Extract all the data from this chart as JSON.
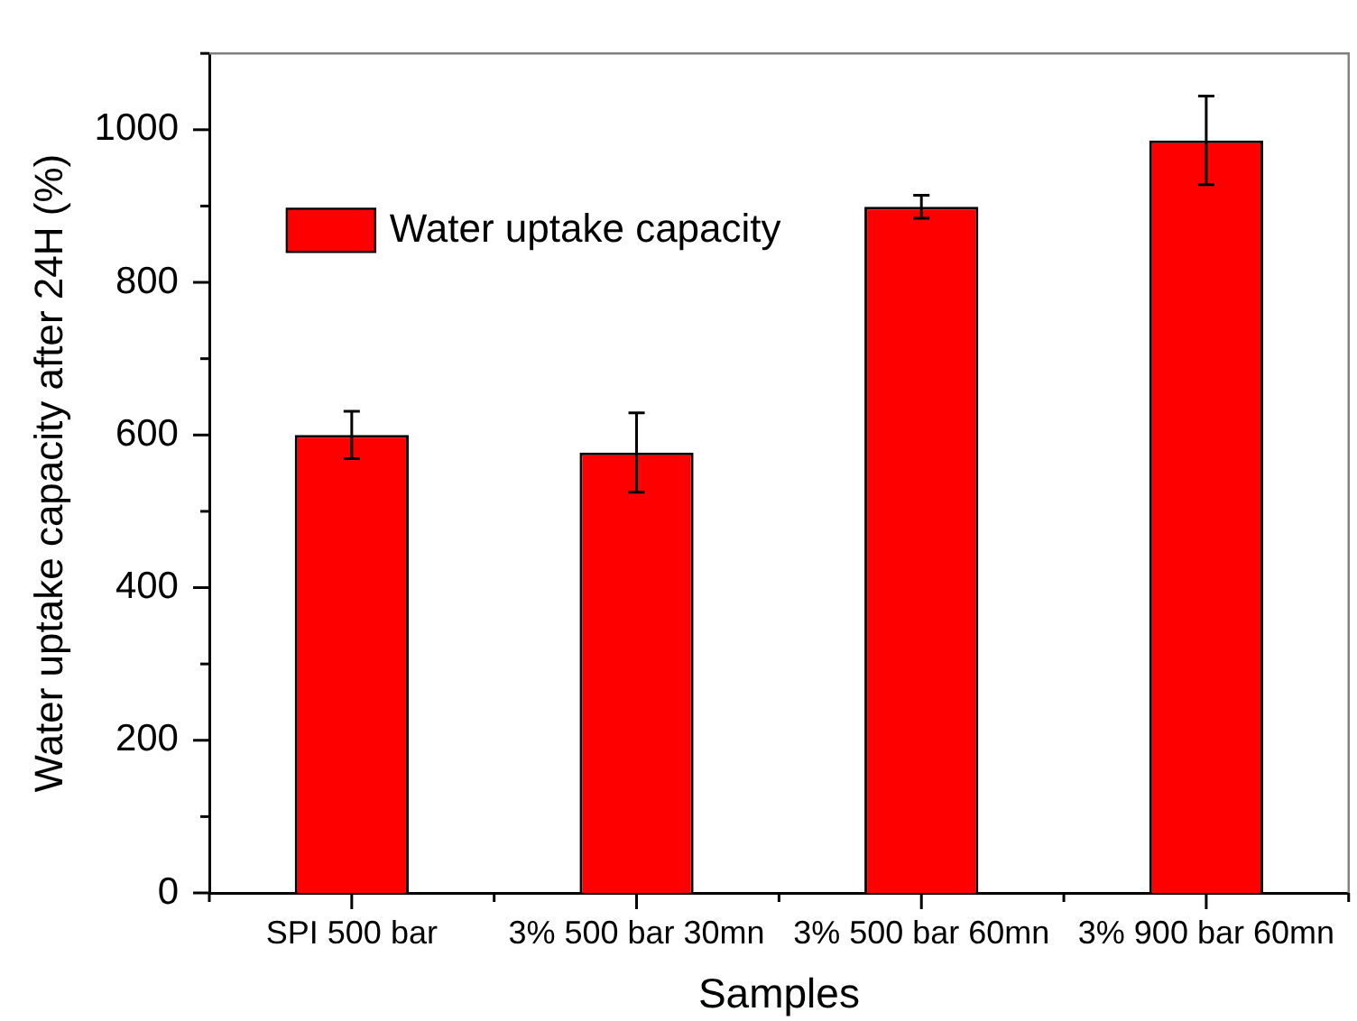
{
  "chart_data": {
    "type": "bar",
    "xlabel": "Samples",
    "ylabel": "Water uptake capacity after 24H (%)",
    "categories": [
      "SPI 500 bar",
      "3% 500 bar 30mn",
      "3% 500 bar 60mn",
      "3% 900 bar 60mn"
    ],
    "series": [
      {
        "name": "Water uptake capacity",
        "color": "#ff0000",
        "values": [
          600,
          577,
          899,
          986
        ],
        "errors": [
          31,
          52,
          15,
          58
        ]
      }
    ],
    "ylim": [
      0,
      1100
    ],
    "yticks": [
      0,
      {
        "value": 100,
        "label": null
      },
      200,
      {
        "value": 300,
        "label": null
      },
      400,
      {
        "value": 500,
        "label": null
      },
      600,
      {
        "value": 700,
        "label": null
      },
      800,
      {
        "value": 900,
        "label": null
      },
      1000,
      {
        "value": 1100,
        "label": null
      }
    ],
    "grid": false,
    "legend": "top left"
  }
}
